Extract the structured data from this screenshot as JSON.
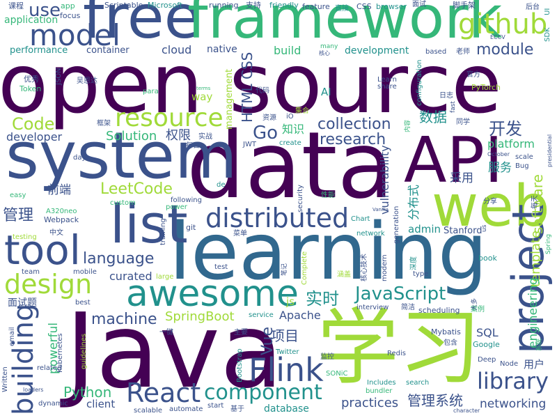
{
  "palette": {
    "purple": "#440154",
    "indigo": "#3b528b",
    "blue": "#31688e",
    "teal": "#21918c",
    "green": "#35b779",
    "lime": "#a0da39",
    "yellow": "#c8d32a",
    "deep_blue": "#2c4a7e"
  },
  "words": [
    {
      "text": "open source",
      "color": "purple"
    },
    {
      "text": "data",
      "color": "purple"
    },
    {
      "text": "Java",
      "color": "purple"
    },
    {
      "text": "learning",
      "color": "blue"
    },
    {
      "text": "free",
      "color": "indigo"
    },
    {
      "text": "framework",
      "color": "green"
    },
    {
      "text": "学习",
      "color": "lime"
    },
    {
      "text": "system",
      "color": "indigo"
    },
    {
      "text": "API",
      "color": "purple"
    },
    {
      "text": "web",
      "color": "lime"
    },
    {
      "text": "list",
      "color": "indigo"
    },
    {
      "text": "tool",
      "color": "indigo"
    },
    {
      "text": "awesome",
      "color": "teal"
    },
    {
      "text": "project",
      "color": "indigo"
    },
    {
      "text": "Flink",
      "color": "indigo"
    },
    {
      "text": "model",
      "color": "indigo"
    },
    {
      "text": "github",
      "color": "lime"
    },
    {
      "text": "resource",
      "color": "lime"
    },
    {
      "text": "distributed",
      "color": "indigo"
    },
    {
      "text": "design",
      "color": "lime"
    },
    {
      "text": "building",
      "color": "indigo"
    },
    {
      "text": "React",
      "color": "indigo"
    },
    {
      "text": "component",
      "color": "teal"
    },
    {
      "text": "library",
      "color": "indigo"
    },
    {
      "text": "use",
      "color": "indigo"
    },
    {
      "text": "Go",
      "color": "indigo"
    },
    {
      "text": "Code",
      "color": "lime"
    },
    {
      "text": "JavaScript",
      "color": "teal"
    },
    {
      "text": "research",
      "color": "indigo"
    },
    {
      "text": "collection",
      "color": "indigo"
    },
    {
      "text": "LeetCode",
      "color": "lime"
    },
    {
      "text": "HTML CSS",
      "color": "indigo"
    },
    {
      "text": "开发",
      "color": "indigo"
    },
    {
      "text": "software",
      "color": "lime"
    },
    {
      "text": "language",
      "color": "indigo"
    },
    {
      "text": "module",
      "color": "indigo"
    },
    {
      "text": "machine",
      "color": "indigo"
    },
    {
      "text": "管理",
      "color": "indigo"
    },
    {
      "text": "实时",
      "color": "teal"
    },
    {
      "text": "Vue",
      "color": "indigo"
    },
    {
      "text": "Python",
      "color": "green"
    },
    {
      "text": "SpringBoot",
      "color": "lime"
    },
    {
      "text": "数据",
      "color": "teal"
    },
    {
      "text": "Solution",
      "color": "green"
    },
    {
      "text": "practices",
      "color": "indigo"
    },
    {
      "text": "管理系统",
      "color": "indigo"
    },
    {
      "text": "项目",
      "color": "indigo"
    },
    {
      "text": "template",
      "color": "lime"
    },
    {
      "text": "engineering",
      "color": "green"
    },
    {
      "text": "powerful",
      "color": "green"
    },
    {
      "text": "curated",
      "color": "indigo"
    },
    {
      "text": "networking",
      "color": "indigo"
    },
    {
      "text": "分布式",
      "color": "teal"
    },
    {
      "text": "vulnerability",
      "color": "indigo"
    },
    {
      "text": "权限",
      "color": "indigo"
    },
    {
      "text": "知识",
      "color": "green"
    },
    {
      "text": "前端",
      "color": "indigo"
    },
    {
      "text": "服务",
      "color": "teal"
    },
    {
      "text": "platform",
      "color": "green"
    },
    {
      "text": "采用",
      "color": "indigo"
    },
    {
      "text": "developer",
      "color": "indigo"
    },
    {
      "text": "Apache",
      "color": "indigo"
    },
    {
      "text": "SQL",
      "color": "indigo"
    },
    {
      "text": "database",
      "color": "teal"
    },
    {
      "text": "client",
      "color": "indigo"
    },
    {
      "text": "用户",
      "color": "indigo"
    },
    {
      "text": "cloud",
      "color": "indigo"
    },
    {
      "text": "build",
      "color": "green"
    },
    {
      "text": "development",
      "color": "teal"
    },
    {
      "text": "container",
      "color": "indigo"
    },
    {
      "text": "performance",
      "color": "teal"
    },
    {
      "text": "native",
      "color": "indigo"
    },
    {
      "text": "application",
      "color": "green"
    },
    {
      "text": "management",
      "color": "lime"
    },
    {
      "text": "admin",
      "color": "teal"
    },
    {
      "text": "Stanford",
      "color": "indigo"
    },
    {
      "text": "面试题",
      "color": "indigo"
    },
    {
      "text": "js",
      "color": "lime"
    },
    {
      "text": "AI",
      "color": "teal"
    },
    {
      "text": "way",
      "color": "lime"
    },
    {
      "text": "课程",
      "color": "indigo"
    },
    {
      "text": "app",
      "color": "green"
    },
    {
      "text": "focus",
      "color": "indigo"
    },
    {
      "text": "Scriptable",
      "color": "indigo"
    },
    {
      "text": "Microsoft",
      "color": "teal"
    },
    {
      "text": "running",
      "color": "indigo"
    },
    {
      "text": "支持",
      "color": "indigo"
    },
    {
      "text": "friendly",
      "color": "teal"
    },
    {
      "text": "feature",
      "color": "indigo"
    },
    {
      "text": "直接",
      "color": "teal"
    },
    {
      "text": "CSS",
      "color": "indigo"
    },
    {
      "text": "browser",
      "color": "teal"
    },
    {
      "text": "面试",
      "color": "indigo"
    },
    {
      "text": "脚手架",
      "color": "indigo"
    },
    {
      "text": "后台",
      "color": "indigo"
    },
    {
      "text": "UI",
      "color": "teal"
    },
    {
      "text": "SDK",
      "color": "teal"
    },
    {
      "text": "ECCV",
      "color": "indigo"
    },
    {
      "text": "老师",
      "color": "indigo"
    },
    {
      "text": "based",
      "color": "indigo"
    },
    {
      "text": "官方",
      "color": "indigo"
    },
    {
      "text": "PyTorch",
      "color": "lime"
    },
    {
      "text": "日志",
      "color": "indigo"
    },
    {
      "text": "同学",
      "color": "indigo"
    },
    {
      "text": "fast",
      "color": "indigo"
    },
    {
      "text": "configuration",
      "color": "teal"
    },
    {
      "text": "Learn",
      "color": "indigo"
    },
    {
      "text": "share",
      "color": "indigo"
    },
    {
      "text": "many",
      "color": "green"
    },
    {
      "text": "核心",
      "color": "indigo"
    },
    {
      "text": "JSON",
      "color": "indigo"
    },
    {
      "text": "优秀",
      "color": "indigo"
    },
    {
      "text": "吴恩达",
      "color": "indigo"
    },
    {
      "text": "Token",
      "color": "green"
    },
    {
      "text": "para",
      "color": "green"
    },
    {
      "text": "terms",
      "color": "green"
    },
    {
      "text": "代码",
      "color": "indigo"
    },
    {
      "text": "资源",
      "color": "indigo"
    },
    {
      "text": "集合",
      "color": "lime"
    },
    {
      "text": "框架",
      "color": "indigo"
    },
    {
      "text": "day",
      "color": "indigo"
    },
    {
      "text": "实战",
      "color": "indigo"
    },
    {
      "text": "每日",
      "color": "indigo"
    },
    {
      "text": "JWT",
      "color": "indigo"
    },
    {
      "text": "create",
      "color": "teal"
    },
    {
      "text": "内容",
      "color": "green"
    },
    {
      "text": "October",
      "color": "indigo"
    },
    {
      "text": "scale",
      "color": "indigo"
    },
    {
      "text": "Bug",
      "color": "indigo"
    },
    {
      "text": "presidential",
      "color": "indigo"
    },
    {
      "text": "easy",
      "color": "green"
    },
    {
      "text": "de",
      "color": "teal"
    },
    {
      "text": "security",
      "color": "indigo"
    },
    {
      "text": "性能",
      "color": "green"
    },
    {
      "text": "分享",
      "color": "indigo"
    },
    {
      "text": "每天",
      "color": "indigo"
    },
    {
      "text": "custom",
      "color": "green"
    },
    {
      "text": "following",
      "color": "indigo"
    },
    {
      "text": "power",
      "color": "green"
    },
    {
      "text": "A320neo",
      "color": "green"
    },
    {
      "text": "Webpack",
      "color": "indigo"
    },
    {
      "text": "中文",
      "color": "indigo"
    },
    {
      "text": "testing",
      "color": "lime"
    },
    {
      "text": "training",
      "color": "indigo"
    },
    {
      "text": "git",
      "color": "indigo"
    },
    {
      "text": "菜单",
      "color": "indigo"
    },
    {
      "text": "Chart",
      "color": "teal"
    },
    {
      "text": "generation",
      "color": "indigo"
    },
    {
      "text": "network",
      "color": "teal"
    },
    {
      "text": "us",
      "color": "indigo"
    },
    {
      "text": "Spring",
      "color": "green"
    },
    {
      "text": "Vanilla",
      "color": "indigo"
    },
    {
      "text": "team",
      "color": "indigo"
    },
    {
      "text": "mobile",
      "color": "indigo"
    },
    {
      "text": "large",
      "color": "lime"
    },
    {
      "text": "test",
      "color": "indigo"
    },
    {
      "text": "笔记",
      "color": "indigo"
    },
    {
      "text": "Complete",
      "color": "lime"
    },
    {
      "text": "核心技术",
      "color": "indigo"
    },
    {
      "text": "modern",
      "color": "indigo"
    },
    {
      "text": "深度",
      "color": "teal"
    },
    {
      "text": "book",
      "color": "teal"
    },
    {
      "text": "type",
      "color": "indigo"
    },
    {
      "text": "涵盖",
      "color": "lime"
    },
    {
      "text": "best",
      "color": "indigo"
    },
    {
      "text": "interview",
      "color": "indigo"
    },
    {
      "text": "简洁",
      "color": "indigo"
    },
    {
      "text": "scheduling",
      "color": "indigo"
    },
    {
      "text": "案例",
      "color": "green"
    },
    {
      "text": "大多",
      "color": "indigo"
    },
    {
      "text": "email",
      "color": "indigo"
    },
    {
      "text": "guidelines",
      "color": "lime"
    },
    {
      "text": "service",
      "color": "teal"
    },
    {
      "text": "主要",
      "color": "indigo"
    },
    {
      "text": "一键",
      "color": "indigo"
    },
    {
      "text": "Mybatis",
      "color": "indigo"
    },
    {
      "text": "包含",
      "color": "indigo"
    },
    {
      "text": "Google",
      "color": "teal"
    },
    {
      "text": "系统",
      "color": "green"
    },
    {
      "text": "Kubernetes",
      "color": "indigo"
    },
    {
      "text": "Twitter",
      "color": "teal"
    },
    {
      "text": "Redis",
      "color": "indigo"
    },
    {
      "text": "Deep",
      "color": "indigo"
    },
    {
      "text": "Node",
      "color": "indigo"
    },
    {
      "text": "Written",
      "color": "indigo"
    },
    {
      "text": "related",
      "color": "indigo"
    },
    {
      "text": "Bootstrap",
      "color": "teal"
    },
    {
      "text": "监控",
      "color": "indigo"
    },
    {
      "text": "SONiC",
      "color": "green"
    },
    {
      "text": "loaders",
      "color": "indigo"
    },
    {
      "text": "dynamic",
      "color": "indigo"
    },
    {
      "text": "scalable",
      "color": "indigo"
    },
    {
      "text": "automate",
      "color": "indigo"
    },
    {
      "text": "start",
      "color": "indigo"
    },
    {
      "text": "基于",
      "color": "indigo"
    },
    {
      "text": "Includes",
      "color": "teal"
    },
    {
      "text": "bundler",
      "color": "green"
    },
    {
      "text": "search",
      "color": "teal"
    },
    {
      "text": "character",
      "color": "indigo"
    },
    {
      "text": "iO",
      "color": "indigo"
    }
  ]
}
